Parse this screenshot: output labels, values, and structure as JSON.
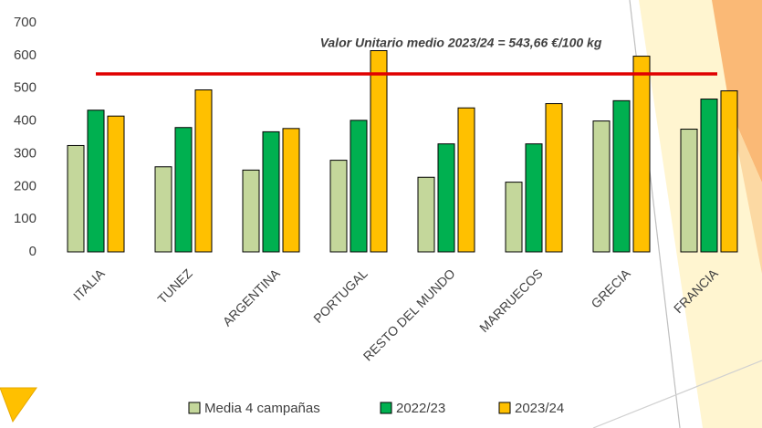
{
  "chart_data": {
    "type": "bar",
    "categories": [
      "ITALIA",
      "TUNEZ",
      "ARGENTINA",
      "PORTUGAL",
      "RESTO DEL MUNDO",
      "MARRUECOS",
      "GRECIA",
      "FRANCIA"
    ],
    "series": [
      {
        "name": "Media 4 campañas",
        "color": "#c4d79b",
        "values": [
          325,
          260,
          250,
          280,
          228,
          213,
          400,
          375
        ]
      },
      {
        "name": "2022/23",
        "color": "#00b050",
        "values": [
          433,
          380,
          367,
          402,
          330,
          330,
          462,
          467
        ]
      },
      {
        "name": "2023/24",
        "color": "#ffc000",
        "values": [
          415,
          495,
          377,
          615,
          440,
          453,
          598,
          492
        ]
      }
    ],
    "reference_line": {
      "value": 543.66,
      "label": "Valor Unitario medio 2023/24 = 543,66 €/100 kg",
      "color": "#e00000"
    },
    "ylim": [
      0,
      700
    ],
    "yticks": [
      0,
      100,
      200,
      300,
      400,
      500,
      600,
      700
    ],
    "grid": false,
    "legend": "bottom"
  }
}
